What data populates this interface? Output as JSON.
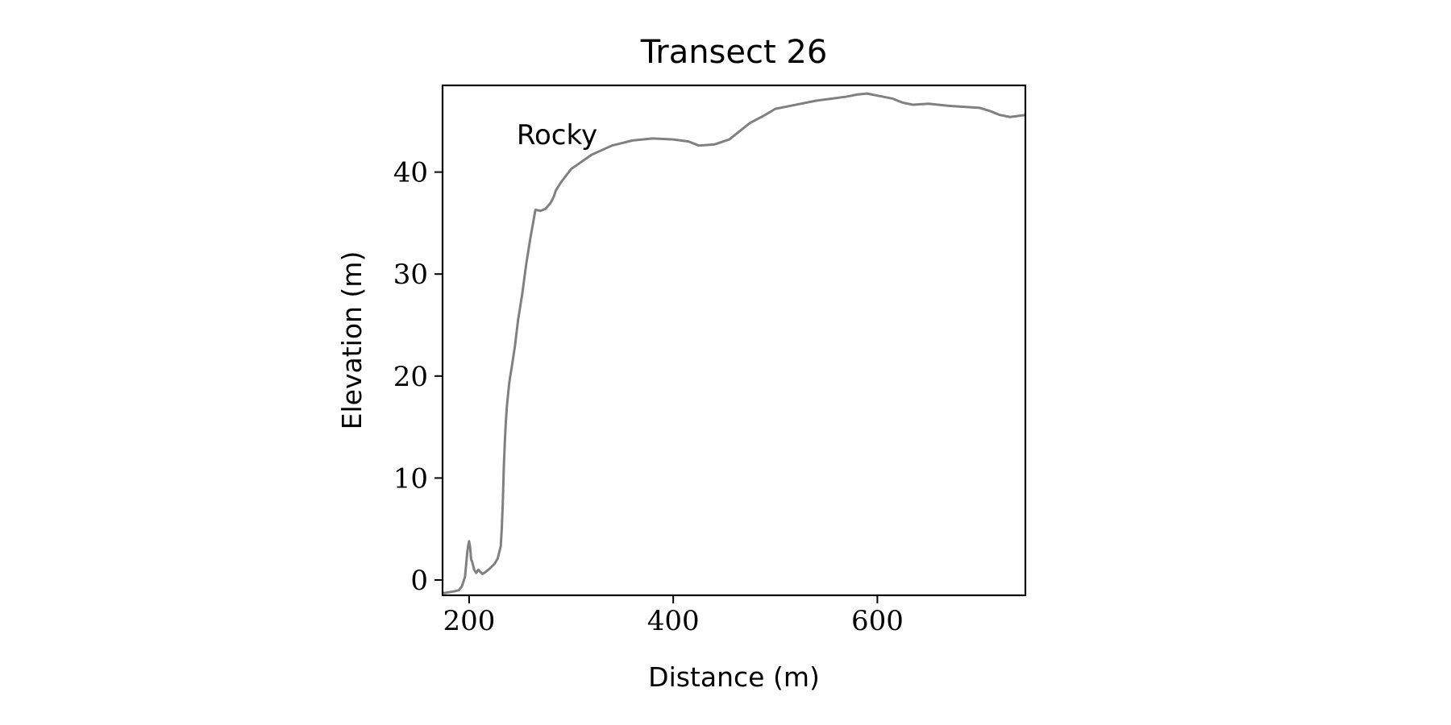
{
  "chart_data": {
    "type": "line",
    "title": "Transect 26",
    "xlabel": "Distance (m)",
    "ylabel": "Elevation (m)",
    "annotation": "Rocky",
    "xlim": [
      174,
      745
    ],
    "ylim": [
      -1.5,
      48.5
    ],
    "xticks": [
      200,
      400,
      600
    ],
    "yticks": [
      0,
      10,
      20,
      30,
      40
    ],
    "grid": false,
    "series": [
      {
        "color": "#808080",
        "x": [
          174,
          180,
          186,
          190,
          193,
          196,
          198,
          199,
          200,
          201,
          202,
          203,
          205,
          207,
          209,
          211,
          213,
          215,
          220,
          225,
          228,
          231,
          232,
          233,
          234,
          235,
          236,
          237,
          238,
          239,
          240,
          242,
          245,
          248,
          252,
          256,
          260,
          265,
          270,
          275,
          280,
          283,
          285,
          290,
          300,
          320,
          340,
          360,
          380,
          400,
          415,
          425,
          440,
          455,
          465,
          475,
          490,
          500,
          520,
          540,
          555,
          570,
          580,
          590,
          600,
          615,
          625,
          635,
          650,
          670,
          700,
          710,
          715,
          720,
          730,
          745
        ],
        "values": [
          -1.3,
          -1.2,
          -1.1,
          -1.0,
          -0.6,
          0.3,
          2.5,
          3.3,
          3.8,
          3.2,
          2.0,
          1.8,
          1.0,
          0.7,
          1.0,
          0.8,
          0.6,
          0.7,
          1.1,
          1.6,
          2.1,
          3.3,
          5.0,
          7.5,
          11.0,
          13.5,
          15.5,
          17.0,
          18.0,
          19.0,
          19.8,
          21.0,
          23.0,
          25.5,
          28.0,
          31.0,
          33.5,
          36.3,
          36.2,
          36.4,
          37.0,
          37.6,
          38.2,
          39.0,
          40.3,
          41.7,
          42.6,
          43.1,
          43.3,
          43.2,
          43.0,
          42.6,
          42.7,
          43.2,
          44.0,
          44.8,
          45.6,
          46.2,
          46.6,
          47.0,
          47.2,
          47.4,
          47.6,
          47.7,
          47.5,
          47.2,
          46.8,
          46.6,
          46.7,
          46.5,
          46.3,
          46.0,
          45.8,
          45.6,
          45.4,
          45.6
        ]
      }
    ]
  }
}
